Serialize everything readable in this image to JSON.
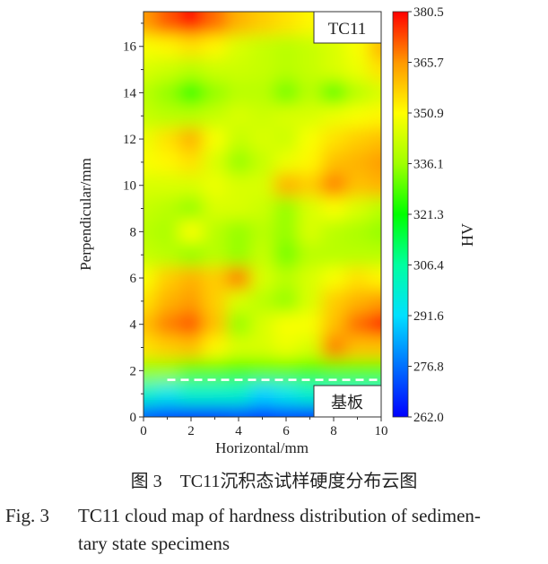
{
  "chart_data": {
    "type": "heatmap",
    "xlabel": "Horizontal/mm",
    "ylabel": "Perpendicular/mm",
    "colorbar_label": "HV",
    "xlim": [
      0,
      10
    ],
    "ylim": [
      0,
      17.5
    ],
    "x_ticks": [
      0,
      2,
      4,
      6,
      8,
      10
    ],
    "y_ticks": [
      0,
      2,
      4,
      6,
      8,
      10,
      12,
      14,
      16
    ],
    "colorbar_ticks": [
      "380.5",
      "365.7",
      "350.9",
      "336.1",
      "321.3",
      "306.4",
      "291.6",
      "276.8",
      "262.0"
    ],
    "colorbar_range": [
      262.0,
      380.5
    ],
    "colormap": [
      "#0000ff",
      "#0070ff",
      "#00e0ff",
      "#00ffa0",
      "#00ff00",
      "#a0ff00",
      "#ffff00",
      "#ff9800",
      "#ff0000"
    ],
    "grid_x": [
      0,
      1,
      2,
      3,
      4,
      5,
      6,
      7,
      8,
      9,
      10
    ],
    "grid_y": [
      17,
      16,
      15,
      14,
      13,
      12,
      11,
      10,
      9,
      8,
      7,
      6,
      5,
      4,
      3,
      2,
      1,
      0
    ],
    "values_hv": [
      [
        365,
        372,
        380,
        370,
        362,
        358,
        355,
        352,
        350,
        350,
        350
      ],
      [
        350,
        352,
        355,
        352,
        345,
        342,
        340,
        342,
        345,
        350,
        362
      ],
      [
        345,
        343,
        340,
        343,
        343,
        342,
        340,
        342,
        345,
        348,
        355
      ],
      [
        340,
        335,
        325,
        335,
        340,
        340,
        332,
        340,
        330,
        340,
        345
      ],
      [
        342,
        340,
        340,
        342,
        345,
        343,
        345,
        345,
        348,
        350,
        352
      ],
      [
        348,
        355,
        362,
        350,
        342,
        345,
        343,
        350,
        355,
        358,
        360
      ],
      [
        350,
        352,
        355,
        345,
        335,
        342,
        348,
        352,
        360,
        362,
        365
      ],
      [
        345,
        345,
        345,
        348,
        345,
        345,
        362,
        358,
        368,
        360,
        362
      ],
      [
        342,
        340,
        335,
        345,
        345,
        343,
        335,
        345,
        350,
        345,
        340
      ],
      [
        340,
        338,
        350,
        340,
        335,
        340,
        335,
        345,
        340,
        338,
        335
      ],
      [
        342,
        340,
        335,
        340,
        335,
        342,
        332,
        340,
        340,
        340,
        340
      ],
      [
        350,
        358,
        362,
        358,
        368,
        345,
        340,
        345,
        350,
        355,
        352
      ],
      [
        355,
        362,
        365,
        358,
        345,
        340,
        335,
        345,
        358,
        362,
        365
      ],
      [
        360,
        368,
        372,
        360,
        335,
        345,
        350,
        350,
        360,
        370,
        378
      ],
      [
        355,
        358,
        360,
        352,
        345,
        345,
        348,
        345,
        368,
        360,
        360
      ],
      [
        335,
        335,
        330,
        330,
        328,
        330,
        330,
        328,
        330,
        330,
        330
      ],
      [
        300,
        295,
        300,
        300,
        300,
        290,
        295,
        300,
        300,
        300,
        300
      ],
      [
        275,
        272,
        270,
        270,
        272,
        270,
        272,
        270,
        268,
        265,
        265
      ]
    ],
    "annotations": {
      "specimen_label": "TC11",
      "substrate_label": "基板",
      "interface_line_y": 1.6
    }
  },
  "caption": {
    "cn": "图 3　TC11沉积态试样硬度分布云图",
    "en_label": "Fig. 3",
    "en_line1": "TC11 cloud map of hardness distribution of sedimen-",
    "en_line2": "tary state specimens"
  }
}
